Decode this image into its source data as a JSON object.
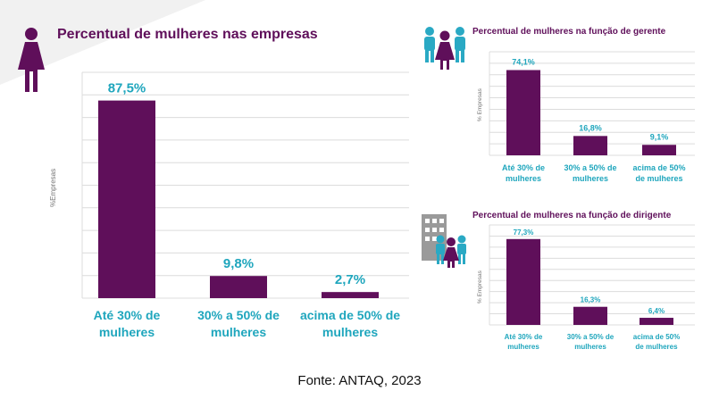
{
  "source": "Fonte: ANTAQ, 2023",
  "colors": {
    "bar": "#5f0f5a",
    "value_text": "#1fa6bd",
    "title": "#5f0f5a",
    "grid": "#dcdcdc"
  },
  "icons": {
    "main": "woman-icon",
    "gerente": "group-of-people-icon",
    "dirigente": "building-with-people-icon"
  },
  "chart_data": [
    {
      "type": "bar",
      "title": "Percentual de mulheres nas empresas",
      "ylabel": "%Empresas",
      "categories": [
        [
          "Até 30% de",
          "mulheres"
        ],
        [
          "30% a 50% de",
          "mulheres"
        ],
        [
          "acima de 50% de",
          "mulheres"
        ]
      ],
      "values": [
        87.5,
        9.8,
        2.7
      ],
      "labels": [
        "87,5%",
        "9,8%",
        "2,7%"
      ],
      "ylim": [
        0,
        100
      ],
      "grid": true
    },
    {
      "type": "bar",
      "title": "Percentual de mulheres na função de gerente",
      "ylabel": "% Empresas",
      "categories": [
        [
          "Até 30% de",
          "mulheres"
        ],
        [
          "30% a 50% de",
          "mulheres"
        ],
        [
          "acima de 50%",
          "de mulheres"
        ]
      ],
      "values": [
        74.1,
        16.8,
        9.1
      ],
      "labels": [
        "74,1%",
        "16,8%",
        "9,1%"
      ],
      "ylim": [
        0,
        90
      ],
      "grid": true
    },
    {
      "type": "bar",
      "title": "Percentual de mulheres na função de dirigente",
      "ylabel": "% Empresas",
      "categories": [
        [
          "Até 30% de",
          "mulheres"
        ],
        [
          "30% a 50% de",
          "mulheres"
        ],
        [
          "acima de 50%",
          "de mulheres"
        ]
      ],
      "values": [
        77.3,
        16.3,
        6.4
      ],
      "labels": [
        "77,3%",
        "16,3%",
        "6,4%"
      ],
      "ylim": [
        0,
        90
      ],
      "grid": true
    }
  ]
}
